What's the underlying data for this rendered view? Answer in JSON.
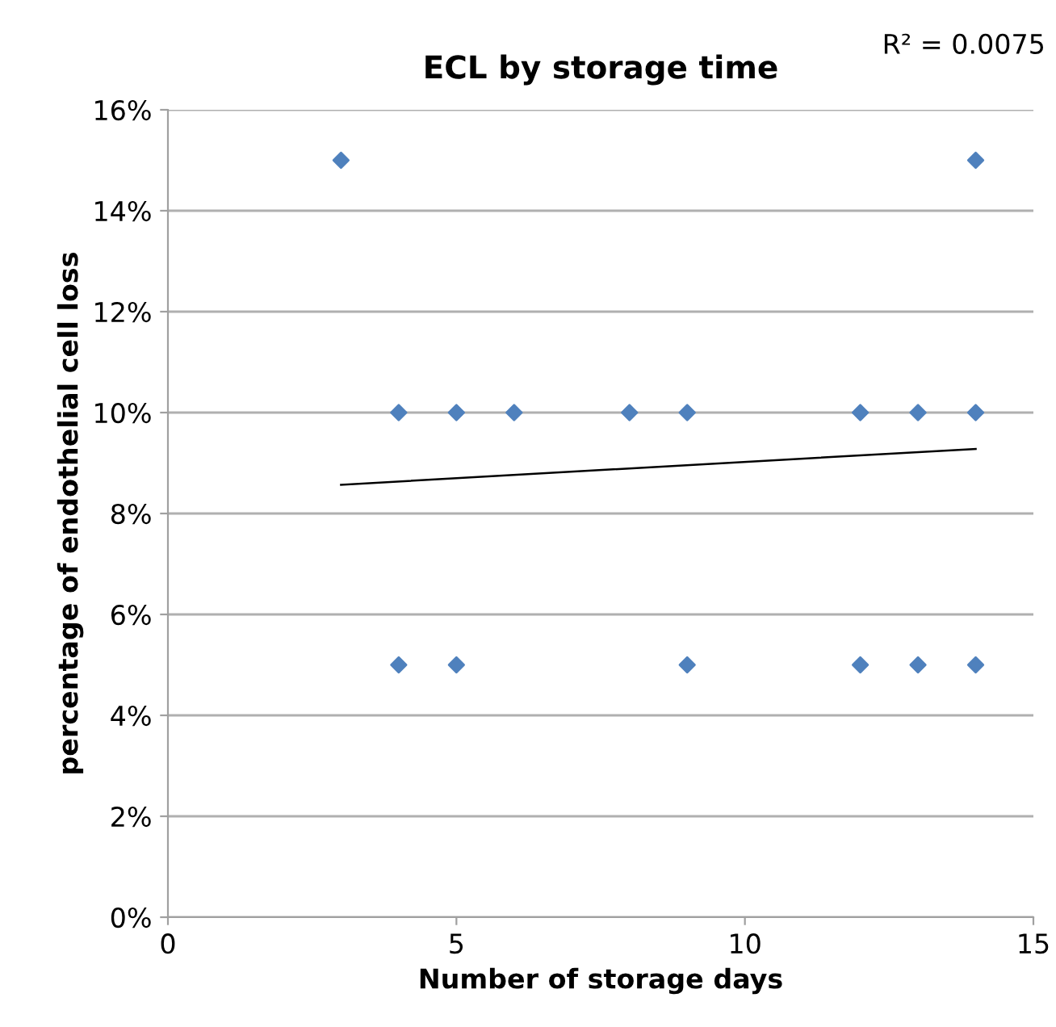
{
  "chart_data": {
    "type": "scatter",
    "title": "ECL by storage time",
    "xlabel": "Number of storage days",
    "ylabel": "percentage of endothelial cell loss",
    "annotations": [
      "R² = 0.0075"
    ],
    "series": [
      {
        "color": "#4f81bd",
        "marker": "diamond",
        "x": [
          3,
          4,
          5,
          6,
          8,
          9,
          12,
          13,
          14,
          4,
          5,
          9,
          12,
          13,
          14,
          14
        ],
        "values": [
          15,
          10,
          10,
          10,
          10,
          10,
          10,
          10,
          10,
          5,
          5,
          5,
          5,
          5,
          5,
          15
        ]
      },
      {
        "type": "line",
        "color": "#000000",
        "marker": "none",
        "x": [
          3,
          14
        ],
        "values": [
          8.57,
          9.28
        ]
      }
    ],
    "xlim": [
      0,
      15
    ],
    "xticks": [
      0,
      5,
      10,
      15
    ],
    "ylim": [
      0,
      16
    ],
    "yticks": [
      {
        "value": 0,
        "label": "0%"
      },
      {
        "value": 2,
        "label": "2%"
      },
      {
        "value": 4,
        "label": "4%"
      },
      {
        "value": 6,
        "label": "6%"
      },
      {
        "value": 8,
        "label": "8%"
      },
      {
        "value": 10,
        "label": "10%"
      },
      {
        "value": 12,
        "label": "12%"
      },
      {
        "value": 14,
        "label": "14%"
      },
      {
        "value": 16,
        "label": "16%"
      }
    ],
    "grid": "y",
    "legend": false
  }
}
